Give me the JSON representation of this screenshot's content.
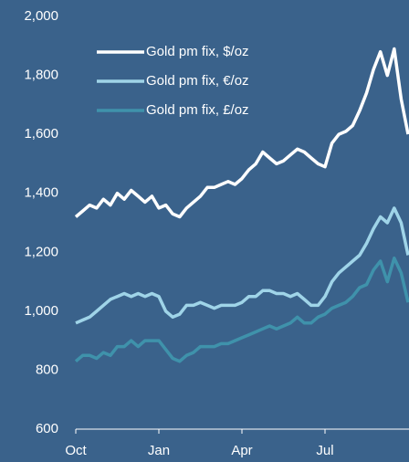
{
  "chart_data": {
    "type": "line",
    "categories": [
      "Oct",
      null,
      null,
      null,
      null,
      null,
      null,
      null,
      null,
      null,
      null,
      null,
      "Jan",
      null,
      null,
      null,
      null,
      null,
      null,
      null,
      null,
      null,
      null,
      null,
      "Apr",
      null,
      null,
      null,
      null,
      null,
      null,
      null,
      null,
      null,
      null,
      null,
      "Jul",
      null,
      null,
      null,
      null,
      null,
      null,
      null,
      null,
      null,
      null,
      null,
      null
    ],
    "series": [
      {
        "name": "Gold pm fix, $/oz",
        "color": "#ffffff",
        "values": [
          1320,
          1340,
          1360,
          1350,
          1380,
          1360,
          1400,
          1380,
          1410,
          1390,
          1370,
          1390,
          1350,
          1360,
          1330,
          1320,
          1350,
          1370,
          1390,
          1420,
          1420,
          1430,
          1440,
          1430,
          1450,
          1480,
          1500,
          1540,
          1520,
          1500,
          1510,
          1530,
          1550,
          1540,
          1520,
          1500,
          1490,
          1570,
          1600,
          1610,
          1630,
          1680,
          1740,
          1820,
          1880,
          1800,
          1890,
          1720,
          1600
        ]
      },
      {
        "name": "Gold pm fix, €/oz",
        "color": "#9fd4e8",
        "values": [
          960,
          970,
          980,
          1000,
          1020,
          1040,
          1050,
          1060,
          1050,
          1060,
          1050,
          1060,
          1050,
          1000,
          980,
          990,
          1020,
          1020,
          1030,
          1020,
          1010,
          1020,
          1020,
          1020,
          1030,
          1050,
          1050,
          1070,
          1070,
          1060,
          1060,
          1050,
          1060,
          1040,
          1020,
          1020,
          1050,
          1100,
          1130,
          1150,
          1170,
          1190,
          1230,
          1280,
          1320,
          1300,
          1350,
          1300,
          1190
        ]
      },
      {
        "name": "Gold pm fix, £/oz",
        "color": "#3f92ab",
        "values": [
          830,
          850,
          850,
          840,
          860,
          850,
          880,
          880,
          900,
          880,
          900,
          900,
          900,
          870,
          840,
          830,
          850,
          860,
          880,
          880,
          880,
          890,
          890,
          900,
          910,
          920,
          930,
          940,
          950,
          940,
          950,
          960,
          980,
          960,
          960,
          980,
          990,
          1010,
          1020,
          1030,
          1050,
          1080,
          1090,
          1140,
          1170,
          1100,
          1180,
          1130,
          1030
        ]
      }
    ],
    "ylim": [
      600,
      2000
    ],
    "yticks": [
      {
        "value": 600,
        "label": "600"
      },
      {
        "value": 800,
        "label": "800"
      },
      {
        "value": 1000,
        "label": "1,000"
      },
      {
        "value": 1200,
        "label": "1,200"
      },
      {
        "value": 1400,
        "label": "1,400"
      },
      {
        "value": 1600,
        "label": "1,600"
      },
      {
        "value": 1800,
        "label": "1,800"
      },
      {
        "value": 2000,
        "label": "2,000"
      }
    ],
    "grid": false,
    "legend": "upper left"
  }
}
